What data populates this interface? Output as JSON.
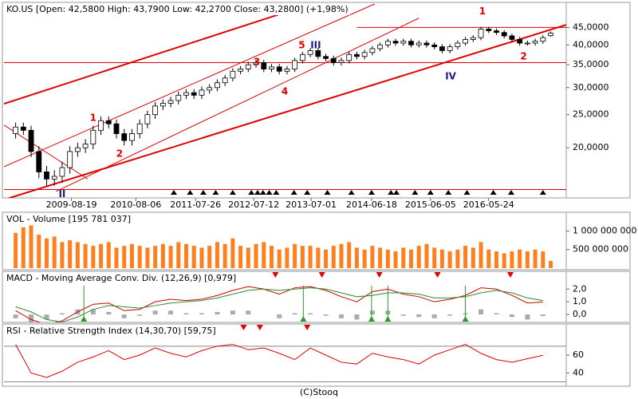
{
  "chart_data": [
    {
      "type": "candlestick",
      "label": "KO.US [Open: 42,5800 High: 43,7900 Low: 42,2700 Close: 43,2800] (+1,98%)",
      "log_y": true,
      "xlim": [
        -1.5,
        71
      ],
      "ylim": [
        14.5,
        52.7
      ],
      "yticks": [
        {
          "value": 45,
          "label": "45,0000"
        },
        {
          "value": 40,
          "label": "40,0000"
        },
        {
          "value": 35,
          "label": "35,0000"
        },
        {
          "value": 30,
          "label": "30,0000"
        },
        {
          "value": 25,
          "label": "25,0000"
        },
        {
          "value": 20,
          "label": "20,0000"
        }
      ],
      "xticks": [
        {
          "value": 7.2,
          "label": "2009-08-19"
        },
        {
          "value": 15.5,
          "label": "2010-08-06"
        },
        {
          "value": 23.2,
          "label": "2011-07-26"
        },
        {
          "value": 30.7,
          "label": "2012-07-12"
        },
        {
          "value": 38.1,
          "label": "2013-07-01"
        },
        {
          "value": 45.9,
          "label": "2014-06-18"
        },
        {
          "value": 53.5,
          "label": "2015-06-05"
        },
        {
          "value": 61,
          "label": "2016-05-24"
        }
      ],
      "open": [
        22.0,
        23.0,
        22.5,
        19.5,
        17.0,
        16.2,
        16.5,
        17.5,
        19.5,
        20.0,
        20.5,
        22.5,
        24.0,
        23.5,
        22.0,
        21.0,
        22.0,
        23.5,
        25.0,
        26.5,
        27.0,
        27.5,
        28.5,
        29.0,
        28.5,
        29.5,
        30.0,
        31.0,
        32.0,
        33.5,
        34.0,
        35.0,
        35.5,
        34.0,
        34.5,
        33.5,
        34.0,
        36.0,
        37.5,
        38.5,
        37.0,
        36.5,
        35.5,
        36.0,
        37.5,
        37.0,
        38.0,
        39.0,
        40.0,
        41.0,
        40.5,
        41.0,
        40.0,
        40.5,
        40.0,
        39.5,
        38.5,
        39.5,
        40.5,
        41.5,
        42.0,
        44.5,
        44.0,
        43.5,
        42.5,
        41.5,
        40.5,
        40.5,
        41.0,
        42.58
      ],
      "high": [
        23.7,
        23.7,
        23.2,
        20.2,
        17.7,
        17.2,
        18.2,
        20.2,
        20.7,
        21.2,
        23.2,
        24.7,
        24.7,
        24.2,
        22.7,
        22.7,
        24.2,
        25.7,
        27.2,
        27.7,
        28.2,
        29.2,
        29.7,
        29.7,
        30.2,
        30.7,
        31.7,
        32.7,
        34.2,
        34.7,
        35.7,
        36.2,
        36.2,
        35.2,
        35.2,
        34.7,
        36.7,
        38.2,
        39.2,
        39.2,
        37.7,
        37.2,
        36.7,
        38.2,
        38.2,
        38.7,
        39.7,
        40.7,
        41.7,
        41.7,
        41.7,
        41.7,
        41.2,
        41.2,
        40.7,
        40.2,
        40.2,
        41.2,
        42.2,
        42.7,
        45.2,
        45.2,
        44.7,
        44.2,
        43.2,
        42.2,
        41.2,
        41.7,
        42.7,
        43.79
      ],
      "low": [
        21.3,
        21.8,
        18.8,
        16.3,
        15.5,
        15.5,
        15.8,
        16.8,
        18.8,
        19.3,
        19.8,
        21.8,
        22.8,
        21.3,
        20.3,
        20.3,
        21.3,
        22.8,
        24.3,
        25.8,
        26.3,
        26.8,
        27.8,
        27.8,
        27.8,
        28.8,
        29.3,
        30.3,
        31.3,
        32.8,
        33.3,
        34.3,
        33.3,
        33.3,
        32.8,
        32.8,
        33.3,
        35.3,
        36.8,
        36.3,
        35.8,
        34.8,
        34.8,
        35.3,
        36.3,
        36.3,
        37.3,
        38.3,
        39.3,
        39.8,
        39.8,
        39.3,
        39.3,
        39.3,
        38.8,
        37.8,
        37.8,
        38.8,
        39.8,
        40.8,
        41.3,
        43.3,
        42.8,
        41.8,
        40.8,
        39.8,
        39.8,
        39.8,
        40.3,
        42.27
      ],
      "close": [
        23.0,
        22.5,
        19.5,
        17.0,
        16.2,
        16.5,
        17.5,
        19.5,
        20.0,
        20.5,
        22.5,
        24.0,
        23.5,
        22.0,
        21.0,
        22.0,
        23.5,
        25.0,
        26.5,
        27.0,
        27.5,
        28.5,
        29.0,
        28.5,
        29.5,
        30.0,
        31.0,
        32.0,
        33.5,
        34.0,
        35.0,
        35.5,
        34.0,
        34.5,
        33.5,
        34.0,
        36.0,
        37.5,
        38.5,
        37.0,
        36.5,
        35.5,
        36.0,
        37.5,
        37.0,
        38.0,
        39.0,
        40.0,
        41.0,
        40.5,
        41.0,
        40.0,
        40.5,
        40.0,
        39.5,
        38.5,
        39.5,
        40.5,
        41.5,
        42.0,
        44.5,
        44.0,
        43.5,
        42.5,
        41.5,
        40.5,
        40.5,
        41.0,
        42.0,
        43.28
      ],
      "up_color": "#ffffff",
      "down_color": "#000000",
      "trendlines": [
        {
          "x": [
            -1.5,
            38.1
          ],
          "y": [
            26.9,
            52.7
          ],
          "color": "#dd0000",
          "width": 2
        },
        {
          "x": [
            -1.5,
            46.3
          ],
          "y": [
            17.6,
            52.7
          ],
          "color": "#dd0000",
          "width": 1
        },
        {
          "x": [
            5.2,
            52
          ],
          "y": [
            14.9,
            47.9
          ],
          "color": "#dd0000",
          "width": 1
        },
        {
          "x": [
            -1.5,
            71
          ],
          "y": [
            14.1,
            45.8
          ],
          "color": "#dd0000",
          "width": 2
        },
        {
          "x": [
            -1.5,
            71
          ],
          "y": [
            35.5,
            35.5
          ],
          "color": "#dd0000",
          "width": 1
        },
        {
          "x": [
            -1.5,
            71
          ],
          "y": [
            15.1,
            15.1
          ],
          "color": "#dd0000",
          "width": 1
        },
        {
          "x": [
            44,
            71
          ],
          "y": [
            45,
            45
          ],
          "color": "#dd0000",
          "width": 1
        },
        {
          "x": [
            -1.5,
            9.3
          ],
          "y": [
            23.3,
            16.2
          ],
          "color": "#dd0000",
          "width": 1
        }
      ],
      "annotations": [
        {
          "text": "1",
          "x": 10.0,
          "y": 24.4,
          "color": "#e00000"
        },
        {
          "text": "2",
          "x": 13.4,
          "y": 19.2,
          "color": "#e00000"
        },
        {
          "text": "3",
          "x": 31.1,
          "y": 35.6,
          "color": "#e00000"
        },
        {
          "text": "4",
          "x": 34.7,
          "y": 29.2,
          "color": "#e00000"
        },
        {
          "text": "5",
          "x": 36.9,
          "y": 39.8,
          "color": "#e00000"
        },
        {
          "text": "III",
          "x": 38.7,
          "y": 39.8,
          "color": "#1a1a8c"
        },
        {
          "text": "IV",
          "x": 56.1,
          "y": 32.3,
          "color": "#1a1a8c"
        },
        {
          "text": "1",
          "x": 60.2,
          "y": 50.1,
          "color": "#e00000"
        },
        {
          "text": "2",
          "x": 65.5,
          "y": 37.0,
          "color": "#e00000"
        },
        {
          "text": "II",
          "x": 6.0,
          "y": 14.6,
          "color": "#1a1a8c"
        }
      ],
      "event_markers": [
        20.4,
        22.5,
        24.2,
        25.8,
        28.0,
        30.4,
        31.2,
        31.9,
        32.7,
        33.6,
        35.9,
        37.6,
        40.2,
        43.3,
        45.9,
        48.4,
        49.1,
        51.5,
        53.5,
        55.8,
        58.2,
        61.6,
        63.9,
        68.0
      ]
    },
    {
      "type": "bar",
      "label": "VOL - Volume [195 781 037]",
      "xlim": [
        -1.5,
        71
      ],
      "ylim": [
        0,
        1375000000
      ],
      "yticks": [
        {
          "value": 1000000000,
          "label": "1 000 000 000"
        },
        {
          "value": 500000000,
          "label": "500 000 000"
        }
      ],
      "color": "#ff7f1e",
      "values": [
        950000000,
        1100000000,
        1150000000,
        900000000,
        800000000,
        850000000,
        700000000,
        750000000,
        700000000,
        650000000,
        600000000,
        650000000,
        700000000,
        550000000,
        600000000,
        650000000,
        600000000,
        550000000,
        600000000,
        650000000,
        600000000,
        700000000,
        650000000,
        600000000,
        550000000,
        600000000,
        700000000,
        650000000,
        800000000,
        600000000,
        550000000,
        650000000,
        700000000,
        600000000,
        500000000,
        550000000,
        650000000,
        600000000,
        600000000,
        550000000,
        500000000,
        600000000,
        650000000,
        700000000,
        550000000,
        500000000,
        600000000,
        550000000,
        500000000,
        450000000,
        550000000,
        500000000,
        600000000,
        650000000,
        550000000,
        500000000,
        450000000,
        500000000,
        600000000,
        550000000,
        700000000,
        500000000,
        450000000,
        400000000,
        450000000,
        500000000,
        450000000,
        500000000,
        450000000,
        195781037
      ]
    },
    {
      "type": "macd",
      "label": "MACD - Moving Average Conv. Div. (12,26,9) [0,979]",
      "xlim": [
        -1.5,
        71
      ],
      "ylim": [
        -0.5,
        3.15
      ],
      "yticks": [
        {
          "value": 2,
          "label": "2,0"
        },
        {
          "value": 1,
          "label": "1,0"
        },
        {
          "value": 0,
          "label": "0,0"
        }
      ],
      "x": [
        0,
        2,
        4,
        6,
        8,
        10,
        12,
        14,
        16,
        18,
        20,
        22,
        24,
        26,
        28,
        30,
        32,
        34,
        36,
        38,
        40,
        42,
        44,
        46,
        48,
        50,
        52,
        54,
        56,
        58,
        60,
        62,
        64,
        66,
        68
      ],
      "series": [
        {
          "color": "#cc0000",
          "values": [
            0.3,
            -0.4,
            -0.8,
            -0.5,
            0.2,
            0.8,
            0.9,
            0.3,
            0.4,
            1.0,
            1.2,
            1.1,
            1.2,
            1.5,
            1.9,
            2.2,
            2.0,
            1.6,
            2.1,
            2.2,
            1.9,
            1.4,
            1.0,
            1.8,
            2.0,
            1.6,
            1.4,
            1.0,
            1.2,
            1.5,
            2.1,
            2.0,
            1.5,
            0.9,
            0.979
          ]
        },
        {
          "color": "#2e8b2e",
          "values": [
            0.6,
            0.2,
            -0.4,
            -0.6,
            -0.2,
            0.4,
            0.7,
            0.6,
            0.5,
            0.7,
            0.9,
            1.0,
            1.1,
            1.3,
            1.6,
            1.9,
            2.0,
            1.9,
            2.0,
            2.1,
            2.0,
            1.7,
            1.4,
            1.5,
            1.7,
            1.7,
            1.6,
            1.3,
            1.3,
            1.4,
            1.7,
            1.9,
            1.7,
            1.3,
            1.1
          ]
        }
      ],
      "histogram": {
        "color": "#aaaaaa",
        "values": [
          -0.3,
          -0.6,
          -0.4,
          0.1,
          0.4,
          0.4,
          0.2,
          -0.3,
          -0.1,
          0.3,
          0.3,
          0.1,
          0.1,
          0.2,
          0.3,
          0.3,
          0.0,
          -0.3,
          0.1,
          0.1,
          -0.1,
          -0.3,
          -0.4,
          0.3,
          0.3,
          -0.1,
          -0.2,
          -0.3,
          -0.1,
          0.1,
          0.4,
          0.1,
          -0.2,
          -0.4,
          -0.12
        ]
      },
      "sell_signals": [
        33.5,
        39.5,
        46.9,
        54.4,
        63.8
      ],
      "buy_signals": [
        8.8,
        37.1,
        45.9,
        48.0,
        58.0
      ]
    },
    {
      "type": "line",
      "label": "RSI - Relative Strength Index (14,30,70) [59,75]",
      "xlim": [
        -1.5,
        71
      ],
      "ylim": [
        28.7,
        91.3
      ],
      "yticks": [
        60,
        40
      ],
      "hlines": [
        70,
        30
      ],
      "x": [
        0,
        2,
        4,
        6,
        8,
        10,
        12,
        14,
        16,
        18,
        20,
        22,
        24,
        26,
        28,
        30,
        32,
        34,
        36,
        38,
        40,
        42,
        44,
        46,
        48,
        50,
        52,
        54,
        56,
        58,
        60,
        62,
        64,
        66,
        68
      ],
      "color": "#dd0000",
      "values": [
        72,
        40,
        35,
        42,
        52,
        58,
        65,
        55,
        60,
        68,
        62,
        58,
        65,
        70,
        72,
        66,
        68,
        62,
        55,
        68,
        60,
        52,
        50,
        62,
        58,
        55,
        50,
        60,
        66,
        72,
        62,
        55,
        52,
        56,
        59.75
      ],
      "sell_signals": [
        24.2,
        29.4,
        31.5,
        37.6
      ]
    }
  ],
  "footer": "(C)Stooq"
}
